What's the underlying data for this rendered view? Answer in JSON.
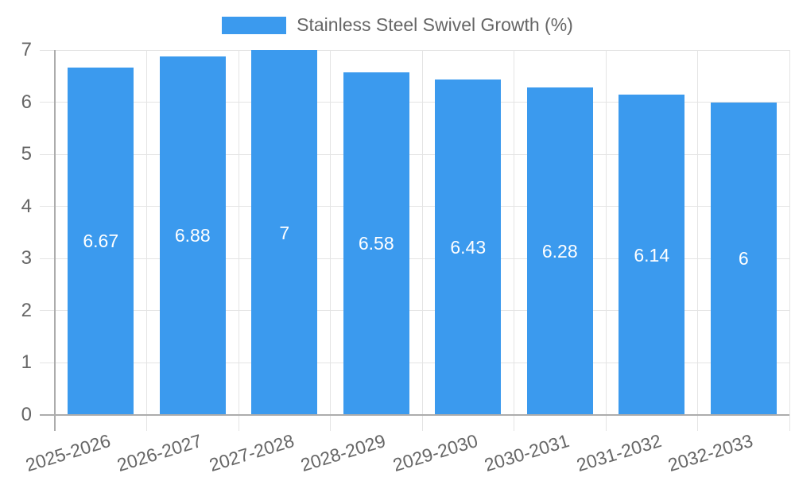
{
  "legend": {
    "label": "Stainless Steel Swivel Growth (%)"
  },
  "chart_data": {
    "type": "bar",
    "title": "",
    "categories": [
      "2025-2026",
      "2026-2027",
      "2027-2028",
      "2028-2029",
      "2029-2030",
      "2030-2031",
      "2031-2032",
      "2032-2033"
    ],
    "series": [
      {
        "name": "Stainless Steel Swivel Growth (%)",
        "values": [
          6.67,
          6.88,
          7,
          6.58,
          6.43,
          6.28,
          6.14,
          6
        ]
      }
    ],
    "value_labels": [
      "6.67",
      "6.88",
      "7",
      "6.58",
      "6.43",
      "6.28",
      "6.14",
      "6"
    ],
    "xlabel": "",
    "ylabel": "",
    "ylim": [
      0,
      7
    ],
    "yticks": [
      0,
      1,
      2,
      3,
      4,
      5,
      6,
      7
    ],
    "grid": true,
    "legend_position": "top",
    "value_label_position": "center-inside"
  },
  "colors": {
    "bar": "#3B9AEE",
    "grid": "#E4E4E4",
    "axis": "#ACACAC",
    "tick_text": "#666666",
    "value_text": "#FFFFFF",
    "background": "#FFFFFF"
  }
}
